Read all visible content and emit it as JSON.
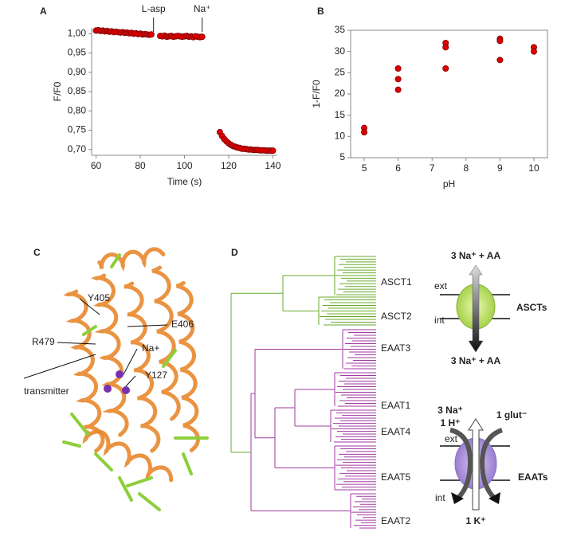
{
  "chart_data": [
    {
      "type": "scatter",
      "panel_label": "A",
      "x_label": "Time (s)",
      "y_label": "F/F0",
      "x": [
        60,
        61,
        62,
        63,
        64,
        65,
        66,
        67,
        68,
        69,
        70,
        71,
        72,
        73,
        74,
        75,
        76,
        77,
        78,
        79,
        80,
        81,
        82,
        83,
        84,
        85,
        89,
        90,
        91,
        92,
        93,
        94,
        95,
        96,
        97,
        98,
        99,
        100,
        101,
        102,
        103,
        104,
        105,
        106,
        107,
        108,
        116,
        117,
        118,
        119,
        120,
        121,
        122,
        123,
        124,
        125,
        126,
        127,
        128,
        129,
        130,
        131,
        132,
        133,
        134,
        135,
        136,
        137,
        138,
        139,
        140
      ],
      "values": [
        1.008,
        1.009,
        1.007,
        1.008,
        1.006,
        1.007,
        1.005,
        1.006,
        1.004,
        1.005,
        1.004,
        1.003,
        1.004,
        1.002,
        1.003,
        1.001,
        1.002,
        1.0,
        1.001,
        0.999,
        1.0,
        0.998,
        0.999,
        0.998,
        0.997,
        0.998,
        0.994,
        0.993,
        0.995,
        0.992,
        0.993,
        0.994,
        0.992,
        0.993,
        0.994,
        0.993,
        0.992,
        0.993,
        0.994,
        0.992,
        0.993,
        0.991,
        0.993,
        0.992,
        0.991,
        0.992,
        0.745,
        0.735,
        0.727,
        0.721,
        0.716,
        0.712,
        0.709,
        0.707,
        0.705,
        0.704,
        0.702,
        0.702,
        0.701,
        0.7,
        0.7,
        0.699,
        0.699,
        0.699,
        0.698,
        0.698,
        0.698,
        0.697,
        0.697,
        0.697,
        0.697
      ],
      "color": "#e00000",
      "xlim": [
        58,
        142
      ],
      "xticks": [
        60,
        80,
        100,
        120,
        140
      ],
      "ylim": [
        0.685,
        1.015
      ],
      "yticks": [
        {
          "value": 0.7,
          "label": "0,70"
        },
        {
          "value": 0.75,
          "label": "0,75"
        },
        {
          "value": 0.8,
          "label": "0,80"
        },
        {
          "value": 0.85,
          "label": "0,85"
        },
        {
          "value": 0.9,
          "label": "0,90"
        },
        {
          "value": 0.95,
          "label": "0,95"
        },
        {
          "value": 1.0,
          "label": "1,00"
        }
      ],
      "annotations": [
        {
          "text": "L-asp",
          "x": 86
        },
        {
          "text": "Na⁺",
          "x": 108
        }
      ]
    },
    {
      "type": "scatter",
      "panel_label": "B",
      "x_label": "pH",
      "y_label": "1-F/F0",
      "x": [
        5,
        5,
        6,
        6,
        6,
        7.4,
        7.4,
        7.4,
        9,
        9,
        9,
        10,
        10
      ],
      "values": [
        12,
        11,
        26,
        23.5,
        21,
        32,
        31,
        26,
        33,
        32.5,
        28,
        31,
        30
      ],
      "color": "#e00000",
      "xlim": [
        4.6,
        10.4
      ],
      "xticks": [
        5,
        6,
        7,
        8,
        9,
        10
      ],
      "ylim": [
        5,
        35
      ],
      "yticks": [
        5,
        10,
        15,
        20,
        25,
        30,
        35
      ],
      "frame": true
    }
  ],
  "panel_c": {
    "label": "C",
    "annotations": [
      "Y405",
      "E406",
      "R479",
      "Na+",
      "transmitter",
      "Y127"
    ]
  },
  "panel_d": {
    "label": "D",
    "clades": [
      "ASCT1",
      "ASCT2",
      "EAAT3",
      "EAAT1",
      "EAAT4",
      "EAAT5",
      "EAAT2"
    ],
    "ascts": {
      "top": "3 Na⁺ + AA",
      "bottom": "3 Na⁺ + AA",
      "ext": "ext",
      "int": "int",
      "name": "ASCTs"
    },
    "eaats": {
      "na": "3 Na⁺",
      "h": "1 H⁺",
      "glut": "1 glut⁻",
      "ext": "ext",
      "int": "int",
      "name": "EAATs",
      "k": "1 K⁺"
    }
  }
}
